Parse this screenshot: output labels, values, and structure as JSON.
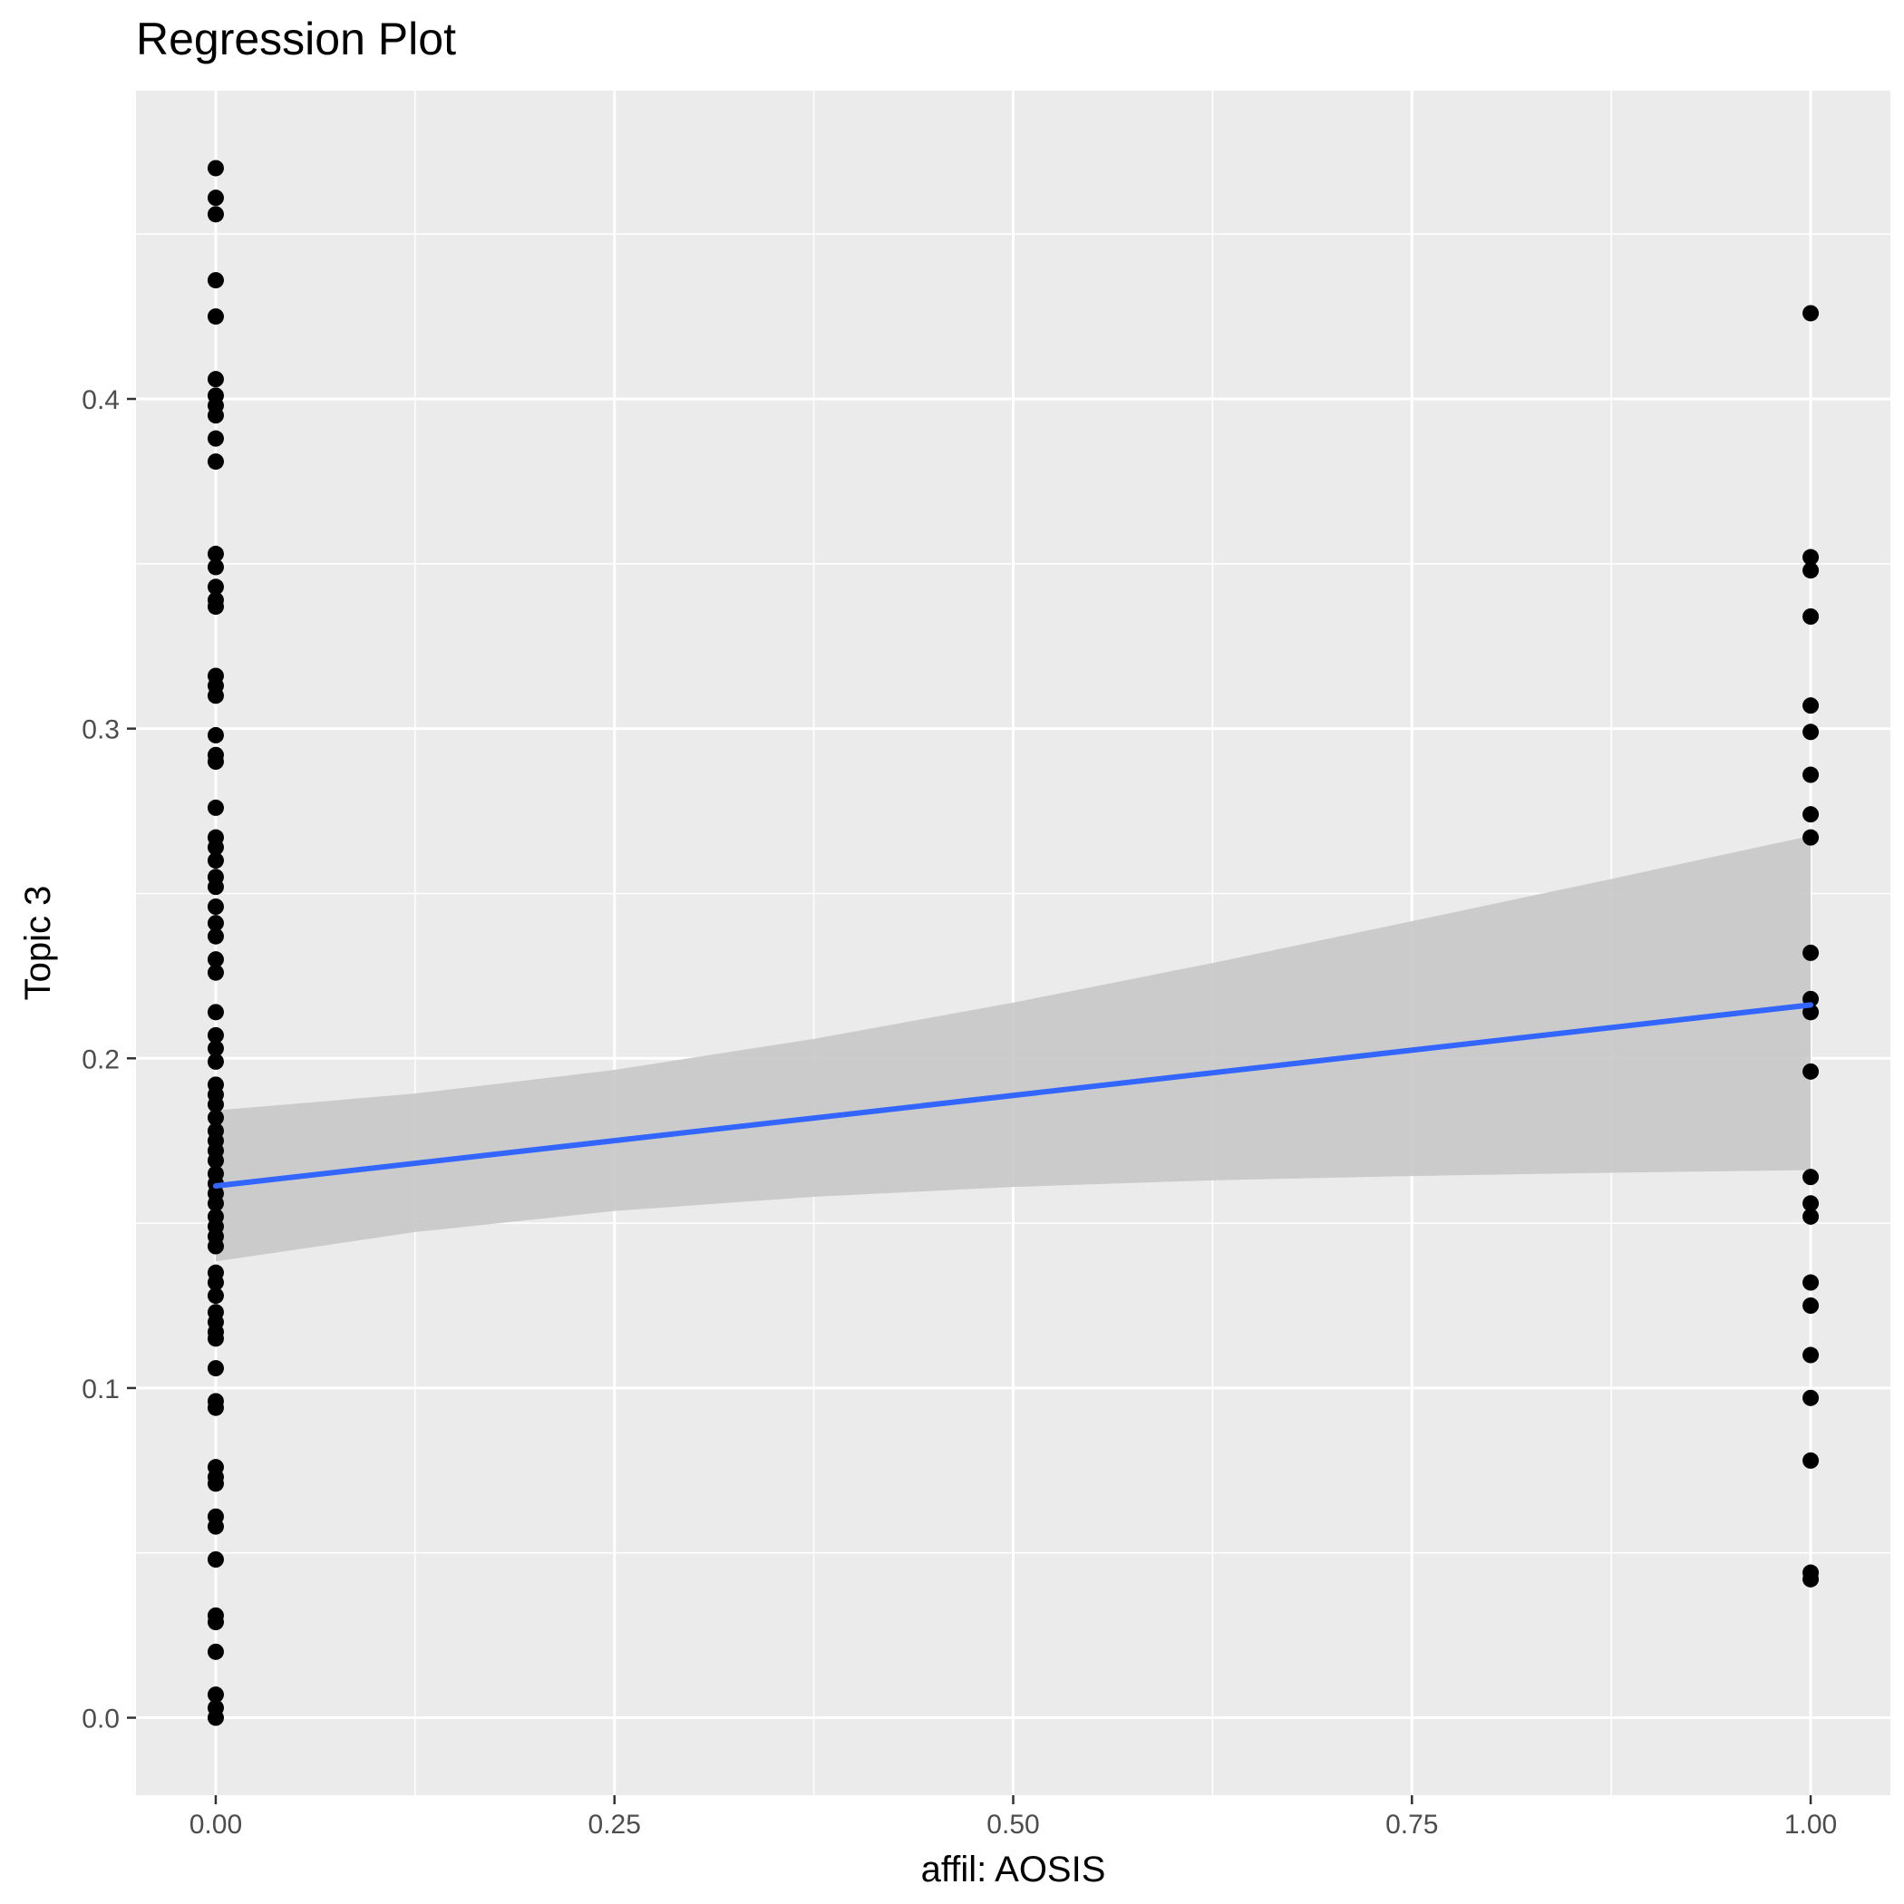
{
  "chart_data": {
    "type": "scatter",
    "title": "Regression Plot",
    "xlabel": "affil: AOSIS",
    "ylabel": "Topic 3",
    "xlim": [
      -0.05,
      1.05
    ],
    "ylim": [
      -0.0235,
      0.4935
    ],
    "x_ticks": [
      0.0,
      0.25,
      0.5,
      0.75,
      1.0
    ],
    "x_tick_labels": [
      "0.00",
      "0.25",
      "0.50",
      "0.75",
      "1.00"
    ],
    "x_minor_ticks": [
      0.125,
      0.375,
      0.625,
      0.875
    ],
    "y_ticks": [
      0.0,
      0.1,
      0.2,
      0.3,
      0.4
    ],
    "y_tick_labels": [
      "0.0",
      "0.1",
      "0.2",
      "0.3",
      "0.4"
    ],
    "y_minor_ticks": [
      0.05,
      0.15,
      0.25,
      0.35,
      0.45
    ],
    "grid": true,
    "colors": {
      "panel": "#ebebeb",
      "grid": "#ffffff",
      "points": "#000000",
      "line": "#3366ff",
      "ribbon": "#c8c8c8"
    },
    "points": {
      "x0": [
        0.47,
        0.461,
        0.456,
        0.436,
        0.425,
        0.406,
        0.401,
        0.398,
        0.395,
        0.388,
        0.381,
        0.353,
        0.349,
        0.343,
        0.339,
        0.337,
        0.316,
        0.313,
        0.31,
        0.298,
        0.292,
        0.29,
        0.276,
        0.267,
        0.264,
        0.26,
        0.255,
        0.252,
        0.246,
        0.241,
        0.237,
        0.23,
        0.226,
        0.214,
        0.207,
        0.203,
        0.199,
        0.192,
        0.189,
        0.186,
        0.182,
        0.178,
        0.175,
        0.172,
        0.169,
        0.165,
        0.162,
        0.159,
        0.156,
        0.152,
        0.149,
        0.146,
        0.143,
        0.135,
        0.132,
        0.128,
        0.123,
        0.12,
        0.117,
        0.115,
        0.106,
        0.096,
        0.094,
        0.076,
        0.073,
        0.071,
        0.061,
        0.058,
        0.048,
        0.031,
        0.029,
        0.02,
        0.007,
        0.003,
        0.0
      ],
      "x1": [
        0.426,
        0.352,
        0.348,
        0.334,
        0.307,
        0.299,
        0.286,
        0.274,
        0.267,
        0.232,
        0.218,
        0.214,
        0.196,
        0.164,
        0.156,
        0.152,
        0.132,
        0.125,
        0.11,
        0.097,
        0.078,
        0.044,
        0.042
      ]
    },
    "regression_line": {
      "x": [
        0.0,
        1.0
      ],
      "y": [
        0.1613,
        0.2162
      ]
    },
    "confidence_band": {
      "x": [
        0.0,
        0.125,
        0.25,
        0.375,
        0.5,
        0.625,
        0.75,
        0.875,
        1.0
      ],
      "upper": [
        0.1842,
        0.1893,
        0.1965,
        0.2059,
        0.2169,
        0.2289,
        0.2416,
        0.2544,
        0.2675
      ],
      "lower": [
        0.1384,
        0.1473,
        0.1537,
        0.158,
        0.161,
        0.163,
        0.1643,
        0.1653,
        0.1661
      ]
    }
  }
}
